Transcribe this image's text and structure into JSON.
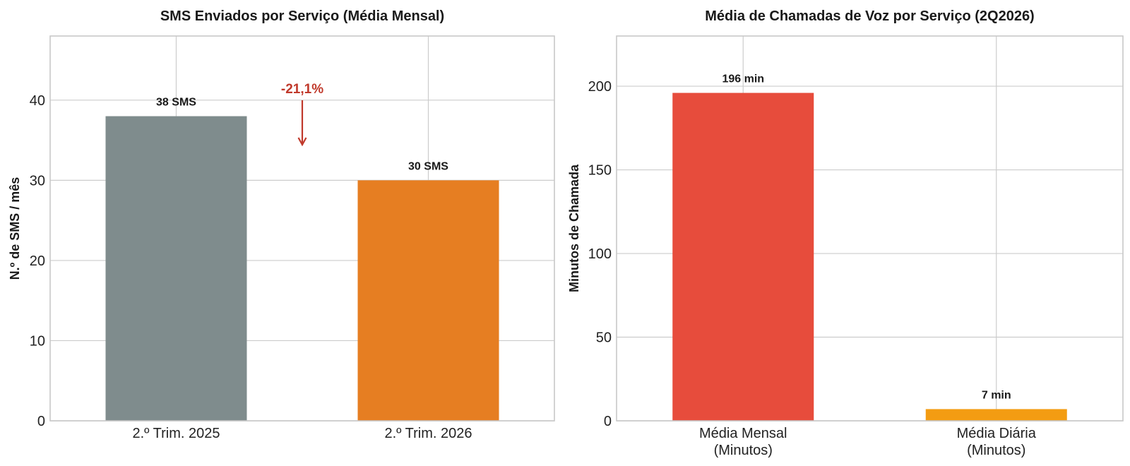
{
  "chart_data": [
    {
      "type": "bar",
      "title": "SMS Enviados por Serviço (Média Mensal)",
      "xlabel": "",
      "ylabel": "N.º de SMS / mês",
      "categories": [
        "2.º Trim. 2025",
        "2.º Trim. 2026"
      ],
      "values": [
        38,
        30
      ],
      "value_labels": [
        "38 SMS",
        "30 SMS"
      ],
      "colors": [
        "#7f8c8d",
        "#e67e22"
      ],
      "ylim": [
        0,
        48
      ],
      "yticks": [
        0,
        10,
        20,
        30,
        40
      ],
      "grid": true,
      "annotation": {
        "text": "-21,1%",
        "color": "#c0392b",
        "arrow": "down"
      }
    },
    {
      "type": "bar",
      "title": "Média de Chamadas de Voz por Serviço (2Q2026)",
      "xlabel": "",
      "ylabel": "Minutos de Chamada",
      "categories": [
        [
          "Média Mensal",
          "(Minutos)"
        ],
        [
          "Média Diária",
          "(Minutos)"
        ]
      ],
      "values": [
        196,
        7
      ],
      "value_labels": [
        "196 min",
        "7 min"
      ],
      "colors": [
        "#e74c3c",
        "#f39c12"
      ],
      "ylim": [
        0,
        230
      ],
      "yticks": [
        0,
        50,
        100,
        150,
        200
      ],
      "grid": true
    }
  ]
}
